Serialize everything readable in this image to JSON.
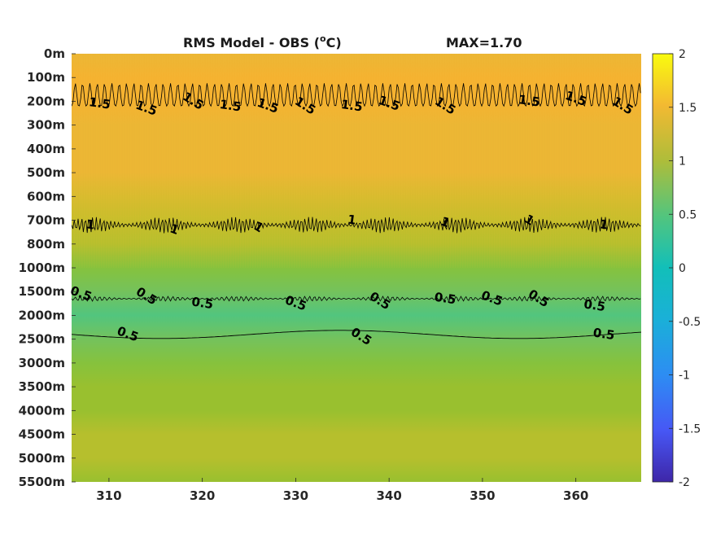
{
  "chart_data": {
    "type": "heatmap",
    "title": {
      "main": "RMS Model - OBS (",
      "sup": "o",
      "unit": "C)",
      "max_text": "MAX=1.70"
    },
    "xlabel": "",
    "ylabel": "",
    "xlim": [
      306,
      367
    ],
    "x_ticks": [
      310,
      320,
      330,
      340,
      350,
      360
    ],
    "y_ticks": [
      "0m",
      "100m",
      "200m",
      "300m",
      "400m",
      "500m",
      "600m",
      "700m",
      "800m",
      "1000m",
      "1500m",
      "2000m",
      "2500m",
      "3000m",
      "3500m",
      "4000m",
      "4500m",
      "5000m",
      "5500m"
    ],
    "y_axis_note": "depth levels plotted at equal spacing (index scale), 0m at top",
    "colorbar": {
      "range": [
        -2,
        2
      ],
      "ticks": [
        2,
        1.5,
        1,
        0.5,
        0,
        -0.5,
        -1,
        -1.5,
        -2
      ],
      "colormap": "parula"
    },
    "max_value": 1.7,
    "mean_profile": {
      "depth": [
        "0m",
        "100m",
        "200m",
        "300m",
        "400m",
        "500m",
        "600m",
        "700m",
        "800m",
        "1000m",
        "1500m",
        "2000m",
        "2500m",
        "3000m",
        "3500m",
        "4000m",
        "4500m",
        "5000m",
        "5500m"
      ],
      "values": [
        1.4,
        1.52,
        1.5,
        1.42,
        1.36,
        1.28,
        1.2,
        1.04,
        0.9,
        0.72,
        0.55,
        0.47,
        0.56,
        0.68,
        0.78,
        0.84,
        0.86,
        0.86,
        0.85
      ]
    },
    "contours": [
      {
        "level": 1.5,
        "label": "1.5",
        "depth_approx": "200m"
      },
      {
        "level": 1,
        "label": "1",
        "depth_approx": "700m-800m"
      },
      {
        "level": 0.5,
        "label": "0.5",
        "depth_approx": "1500m-2000m"
      },
      {
        "level": 0.5,
        "label": "0.5",
        "depth_approx": "2500m"
      }
    ],
    "contour_label_positions": [
      {
        "label": "1.5",
        "x": 309,
        "depth_index": 2.1
      },
      {
        "label": "1.5",
        "x": 314,
        "depth_index": 2.3
      },
      {
        "label": "1.5",
        "x": 319,
        "depth_index": 2.0
      },
      {
        "label": "1.5",
        "x": 323,
        "depth_index": 2.2
      },
      {
        "label": "1.5",
        "x": 327,
        "depth_index": 2.2
      },
      {
        "label": "1.5",
        "x": 331,
        "depth_index": 2.2
      },
      {
        "label": "1.5",
        "x": 336,
        "depth_index": 2.2
      },
      {
        "label": "1.5",
        "x": 340,
        "depth_index": 2.1
      },
      {
        "label": "1.5",
        "x": 346,
        "depth_index": 2.2
      },
      {
        "label": "1.5",
        "x": 355,
        "depth_index": 2.0
      },
      {
        "label": "1.5",
        "x": 360,
        "depth_index": 1.9
      },
      {
        "label": "1.5",
        "x": 365,
        "depth_index": 2.2
      },
      {
        "label": "1",
        "x": 308,
        "depth_index": 7.2
      },
      {
        "label": "1",
        "x": 317,
        "depth_index": 7.4
      },
      {
        "label": "1",
        "x": 326,
        "depth_index": 7.3
      },
      {
        "label": "1",
        "x": 336,
        "depth_index": 7.0
      },
      {
        "label": "1",
        "x": 346,
        "depth_index": 7.1
      },
      {
        "label": "1",
        "x": 355,
        "depth_index": 7.0
      },
      {
        "label": "1",
        "x": 363,
        "depth_index": 7.2
      },
      {
        "label": "0.5",
        "x": 307,
        "depth_index": 10.1
      },
      {
        "label": "0.5",
        "x": 314,
        "depth_index": 10.2
      },
      {
        "label": "0.5",
        "x": 320,
        "depth_index": 10.5
      },
      {
        "label": "0.5",
        "x": 330,
        "depth_index": 10.5
      },
      {
        "label": "0.5",
        "x": 339,
        "depth_index": 10.4
      },
      {
        "label": "0.5",
        "x": 346,
        "depth_index": 10.3
      },
      {
        "label": "0.5",
        "x": 351,
        "depth_index": 10.3
      },
      {
        "label": "0.5",
        "x": 356,
        "depth_index": 10.3
      },
      {
        "label": "0.5",
        "x": 362,
        "depth_index": 10.6
      },
      {
        "label": "0.5",
        "x": 312,
        "depth_index": 11.8
      },
      {
        "label": "0.5",
        "x": 337,
        "depth_index": 11.9
      },
      {
        "label": "0.5",
        "x": 363,
        "depth_index": 11.8
      }
    ]
  },
  "colors": {
    "c15": "#f3b22e",
    "c14": "#f0ba33",
    "c12": "#d8bb2e",
    "c10": "#b6bf2d",
    "c08": "#99c02f",
    "c07": "#86c23d",
    "c06": "#74c25c",
    "c05": "#5fc27a",
    "contour_line": "#000000"
  }
}
